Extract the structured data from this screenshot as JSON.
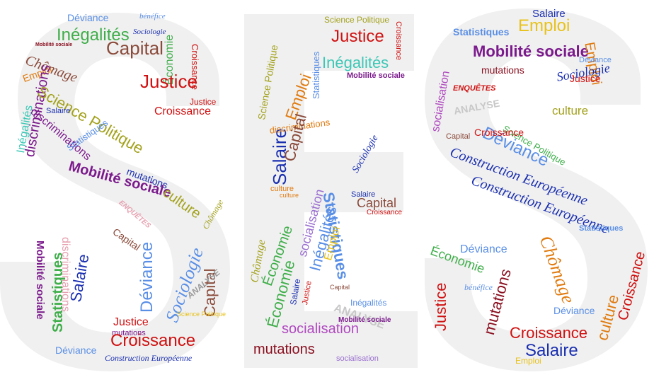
{
  "image": {
    "kind": "word-cloud",
    "shape_letters": [
      "S",
      "E",
      "S"
    ],
    "background": "#ffffff",
    "letter_fill": "#f0f0f0"
  },
  "palette": {
    "red": "#d01010",
    "blue": "#1a2fb0",
    "sky": "#5a8fe6",
    "purple": "#7b1a8c",
    "green": "#3fae4a",
    "teal": "#3cc7b6",
    "olive": "#a3a21e",
    "orange": "#e07b10",
    "yellow": "#e8c21a",
    "brown": "#8a4a3a",
    "pink": "#e6a0b0",
    "grey": "#9a9a9a",
    "maroon": "#8a1020",
    "magenta": "#b0208a"
  },
  "words": {
    "s1": [
      "Déviance",
      "bénéfice",
      "Inégalités",
      "Sociologie",
      "Capital",
      "Économie",
      "Croissance",
      "Chômage",
      "Emploi",
      "discriminations",
      "Science Politique",
      "Justice",
      "Justice",
      "Croissance",
      "Inégalités",
      "discriminations",
      "Salaire",
      "Statistiques",
      "mutations",
      "Mobilité sociale",
      "culture",
      "ENQUÊTES",
      "Capital",
      "Chômage",
      "Mobilité sociale",
      "Statistiques",
      "Sociologie",
      "Déviance",
      "Capital",
      "discriminations",
      "Salaire",
      "Justice",
      "mutations",
      "Croissance",
      "Déviance",
      "Construction Européenne",
      "Science Politique",
      "ANALYSE",
      "Mobilité sociale"
    ],
    "e": [
      "Statistiques",
      "Science Politique",
      "Justice",
      "Croissance",
      "Inégalités",
      "Mobilité sociale",
      "Emploi",
      "Salaire",
      "Science Politique",
      "Statistiques",
      "discriminations",
      "Salaire",
      "Capital",
      "Sociologie",
      "culture",
      "socialisation",
      "Capital",
      "Inégalités",
      "Économie",
      "Emploi",
      "Croissance",
      "Économie",
      "Chômage",
      "culture",
      "Capital",
      "Inégalités",
      "ANALYSE",
      "Mobilité sociale",
      "socialisation",
      "mutations",
      "socialisation",
      "Salaire",
      "Justice"
    ],
    "s2": [
      "Salaire",
      "Statistiques",
      "Emploi",
      "Mobilité sociale",
      "Emploi",
      "Déviance",
      "Sociologie",
      "Justice",
      "mutations",
      "ENQUÊTES",
      "culture",
      "socialisation",
      "ANALYSE",
      "Déviance",
      "Construction Européenne",
      "Construction Européenne",
      "Science Politique",
      "Capital",
      "Croissance",
      "Chômage",
      "Déviance",
      "Économie",
      "Justice",
      "mutations",
      "culture",
      "Croissance",
      "Croissance",
      "Salaire",
      "Emploi",
      "Déviance",
      "bénéfice",
      "Statistiques"
    ]
  }
}
